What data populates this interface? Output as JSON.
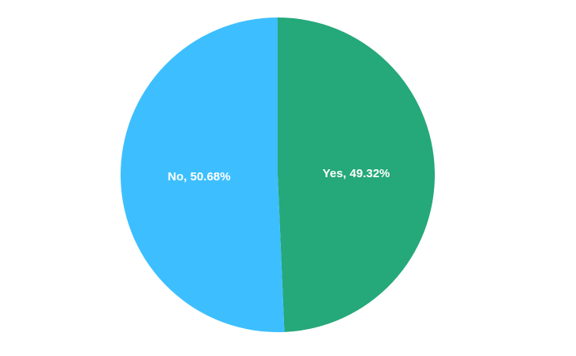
{
  "chart_data": {
    "type": "pie",
    "title": "",
    "slices": [
      {
        "label": "Yes",
        "value": 49.32,
        "display": "Yes, 49.32%",
        "color": "#25A87A"
      },
      {
        "label": "No",
        "value": 50.68,
        "display": "No, 50.68%",
        "color": "#3DBFFF"
      }
    ],
    "start": "top",
    "direction": "clockwise",
    "legend": "none"
  }
}
